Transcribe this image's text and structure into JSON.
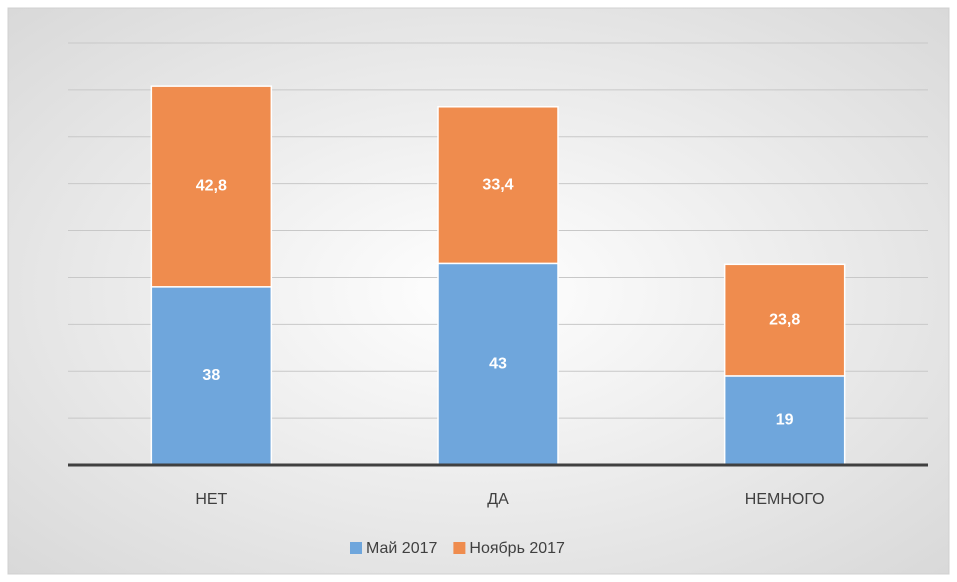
{
  "chart_data": {
    "type": "stacked_bar",
    "categories": [
      "НЕТ",
      "ДА",
      "НЕМНОГО"
    ],
    "series": [
      {
        "name": "Май 2017",
        "color": "#6fa6dc",
        "values": [
          38,
          43,
          19
        ],
        "value_labels": [
          "38",
          "43",
          "19"
        ]
      },
      {
        "name": "Ноябрь 2017",
        "color": "#ef8c4e",
        "values": [
          42.8,
          33.4,
          23.8
        ],
        "value_labels": [
          "42,8",
          "33,4",
          "23,8"
        ]
      }
    ],
    "ylim": [
      0,
      90
    ],
    "yticks": [
      0,
      10,
      20,
      30,
      40,
      50,
      60,
      70,
      80,
      90
    ],
    "grid": true,
    "legend": "bottom"
  }
}
